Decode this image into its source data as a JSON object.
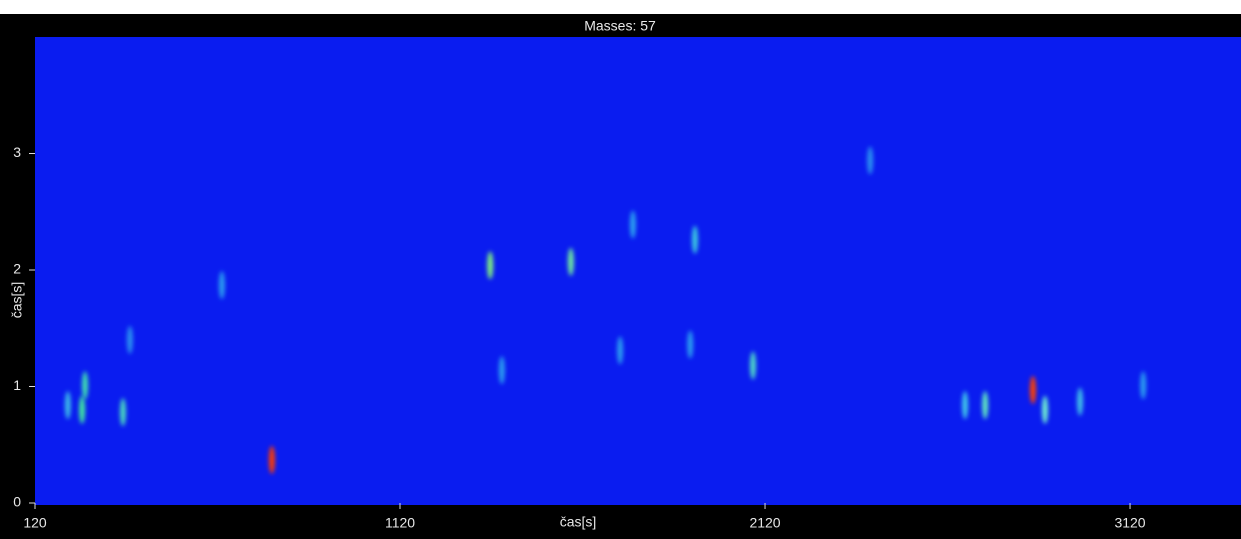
{
  "chart_data": {
    "type": "heatmap",
    "title": "Masses: 57",
    "x_label": "čas[s]",
    "y_label": "čas[s]",
    "xlim": [
      120,
      3424
    ],
    "ylim": [
      0,
      4
    ],
    "xticks": [
      120,
      1120,
      2120,
      3120
    ],
    "yticks": [
      0,
      1,
      2,
      3
    ],
    "background": "#0a1cf0",
    "x": [
      769,
      257,
      249,
      361,
      210,
      1367,
      1588,
      1928,
      1758,
      2087,
      1399,
      2854,
      2723,
      2887,
      2668,
      632,
      380,
      2408,
      1915,
      1723,
      2983,
      3156
    ],
    "values": [
      0.37,
      1.01,
      0.8,
      0.78,
      0.84,
      2.04,
      2.07,
      2.26,
      2.39,
      1.18,
      1.14,
      0.97,
      0.84,
      0.8,
      0.84,
      1.87,
      1.4,
      2.94,
      1.36,
      1.31,
      0.87,
      1.01
    ],
    "colors": [
      "#ff3a00",
      "#3fe0b0",
      "#40e8a0",
      "#4ad8c0",
      "#3ab8e8",
      "#80f080",
      "#70e8a0",
      "#3ac8e0",
      "#2aa0f0",
      "#50d8c8",
      "#2a9cf0",
      "#ff4000",
      "#60e8c0",
      "#70f0d0",
      "#40c8e8",
      "#2a9cf0",
      "#2a90f0",
      "#2a90f0",
      "#2a9cf0",
      "#2a9cf0",
      "#40c0e8",
      "#2a9cf0"
    ]
  }
}
